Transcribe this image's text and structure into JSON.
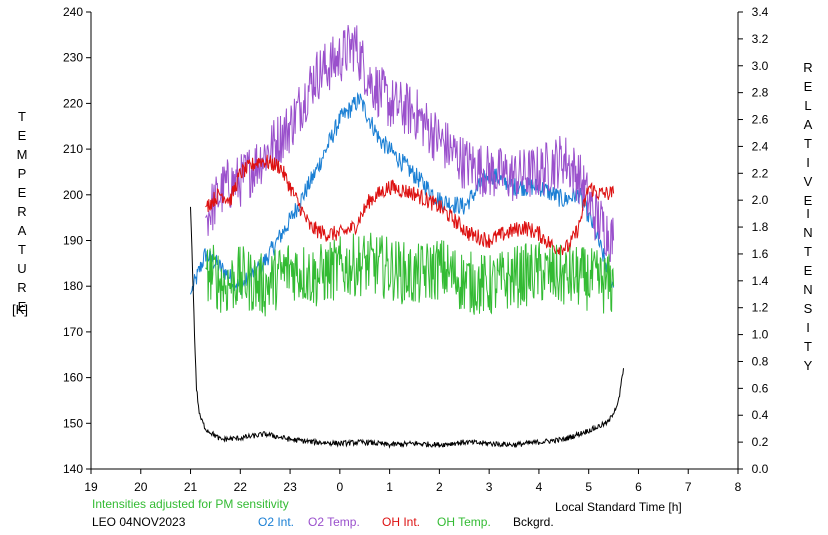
{
  "chart_data": {
    "type": "line",
    "title": "",
    "x_axis": {
      "label": "Local Standard Time [h]",
      "range": [
        19,
        32
      ],
      "ticks": [
        "19",
        "20",
        "21",
        "22",
        "23",
        "0",
        "1",
        "2",
        "3",
        "4",
        "5",
        "6",
        "7",
        "8"
      ]
    },
    "y_axis_left": {
      "label_letters": [
        "T",
        "E",
        "M",
        "P",
        "E",
        "R",
        "A",
        "T",
        "U",
        "R",
        "E"
      ],
      "unit": "[K]",
      "range": [
        140,
        240
      ],
      "ticks": [
        140,
        150,
        160,
        170,
        180,
        190,
        200,
        210,
        220,
        230,
        240
      ]
    },
    "y_axis_right": {
      "label_letters_1": [
        "R",
        "E",
        "L",
        "A",
        "T",
        "I",
        "V",
        "E"
      ],
      "label_letters_2": [
        "I",
        "N",
        "T",
        "E",
        "N",
        "S",
        "I",
        "T",
        "Y"
      ],
      "range": [
        0.0,
        3.4
      ],
      "ticks": [
        "0.0",
        "0.2",
        "0.4",
        "0.6",
        "0.8",
        "1.0",
        "1.2",
        "1.4",
        "1.6",
        "1.8",
        "2.0",
        "2.2",
        "2.4",
        "2.6",
        "2.8",
        "3.0",
        "3.2",
        "3.4"
      ]
    },
    "grid": false,
    "series": [
      {
        "name": "O2 Int.",
        "axis": "right",
        "color": "#1a7fd4",
        "noise": 0.07,
        "points": [
          [
            21.0,
            1.3
          ],
          [
            21.3,
            1.6
          ],
          [
            21.6,
            1.5
          ],
          [
            22.0,
            1.35
          ],
          [
            22.5,
            1.55
          ],
          [
            23.0,
            1.85
          ],
          [
            23.5,
            2.2
          ],
          [
            24.0,
            2.6
          ],
          [
            24.4,
            2.75
          ],
          [
            24.8,
            2.45
          ],
          [
            25.2,
            2.3
          ],
          [
            25.6,
            2.15
          ],
          [
            26.0,
            2.0
          ],
          [
            26.5,
            1.95
          ],
          [
            27.0,
            2.2
          ],
          [
            27.5,
            2.1
          ],
          [
            28.0,
            2.1
          ],
          [
            28.5,
            2.0
          ],
          [
            28.8,
            2.05
          ],
          [
            29.1,
            1.8
          ],
          [
            29.5,
            1.35
          ]
        ]
      },
      {
        "name": "O2 Temp.",
        "axis": "left",
        "color": "#9a50cc",
        "noise": 6,
        "points": [
          [
            21.3,
            195
          ],
          [
            21.7,
            202
          ],
          [
            22.0,
            203
          ],
          [
            22.5,
            209
          ],
          [
            23.0,
            215
          ],
          [
            23.5,
            226
          ],
          [
            24.0,
            230
          ],
          [
            24.3,
            233
          ],
          [
            24.6,
            225
          ],
          [
            25.0,
            220
          ],
          [
            25.5,
            218
          ],
          [
            26.0,
            212
          ],
          [
            26.5,
            207
          ],
          [
            27.0,
            205
          ],
          [
            27.5,
            204
          ],
          [
            28.0,
            205
          ],
          [
            28.5,
            208
          ],
          [
            28.8,
            204
          ],
          [
            29.1,
            196
          ],
          [
            29.5,
            190
          ]
        ]
      },
      {
        "name": "OH Int.",
        "axis": "right",
        "color": "#dd1111",
        "noise": 0.06,
        "points": [
          [
            21.3,
            1.95
          ],
          [
            21.6,
            2.05
          ],
          [
            21.8,
            2.0
          ],
          [
            22.0,
            2.2
          ],
          [
            22.4,
            2.3
          ],
          [
            22.8,
            2.25
          ],
          [
            23.0,
            2.1
          ],
          [
            23.4,
            1.8
          ],
          [
            23.7,
            1.75
          ],
          [
            24.0,
            1.75
          ],
          [
            24.3,
            1.8
          ],
          [
            24.6,
            2.0
          ],
          [
            25.0,
            2.1
          ],
          [
            25.5,
            2.05
          ],
          [
            26.0,
            1.95
          ],
          [
            26.3,
            1.85
          ],
          [
            26.6,
            1.75
          ],
          [
            27.0,
            1.7
          ],
          [
            27.3,
            1.75
          ],
          [
            27.7,
            1.8
          ],
          [
            28.0,
            1.75
          ],
          [
            28.3,
            1.65
          ],
          [
            28.6,
            1.65
          ],
          [
            28.8,
            1.8
          ],
          [
            29.0,
            2.1
          ],
          [
            29.2,
            2.05
          ],
          [
            29.5,
            2.05
          ]
        ]
      },
      {
        "name": "OH Temp.",
        "axis": "left",
        "color": "#33bb33",
        "noise": 7,
        "points": [
          [
            21.3,
            184
          ],
          [
            21.7,
            180
          ],
          [
            22.0,
            182
          ],
          [
            22.5,
            180
          ],
          [
            23.0,
            184
          ],
          [
            23.5,
            182
          ],
          [
            24.0,
            184
          ],
          [
            24.5,
            185
          ],
          [
            25.0,
            184
          ],
          [
            25.5,
            182
          ],
          [
            26.0,
            184
          ],
          [
            26.5,
            181
          ],
          [
            27.0,
            180
          ],
          [
            27.5,
            182
          ],
          [
            28.0,
            183
          ],
          [
            28.5,
            182
          ],
          [
            28.8,
            182
          ],
          [
            29.2,
            181
          ],
          [
            29.5,
            180
          ]
        ]
      },
      {
        "name": "Bckgrd.",
        "axis": "right",
        "color": "#000000",
        "noise": 0.02,
        "points": [
          [
            21.0,
            1.95
          ],
          [
            21.04,
            1.5
          ],
          [
            21.08,
            1.0
          ],
          [
            21.12,
            0.6
          ],
          [
            21.18,
            0.4
          ],
          [
            21.3,
            0.3
          ],
          [
            21.6,
            0.22
          ],
          [
            22.0,
            0.23
          ],
          [
            22.5,
            0.26
          ],
          [
            23.0,
            0.22
          ],
          [
            23.5,
            0.2
          ],
          [
            24.0,
            0.19
          ],
          [
            24.5,
            0.2
          ],
          [
            25.0,
            0.18
          ],
          [
            25.5,
            0.19
          ],
          [
            26.0,
            0.18
          ],
          [
            26.5,
            0.2
          ],
          [
            27.0,
            0.19
          ],
          [
            27.5,
            0.18
          ],
          [
            28.0,
            0.2
          ],
          [
            28.5,
            0.22
          ],
          [
            28.8,
            0.26
          ],
          [
            29.1,
            0.3
          ],
          [
            29.4,
            0.35
          ],
          [
            29.6,
            0.5
          ],
          [
            29.7,
            0.75
          ]
        ]
      }
    ],
    "annotations": [
      {
        "text": "Intensities adjusted for PM sensitivity",
        "color": "#33bb33"
      }
    ]
  },
  "footer": {
    "station": "LEO 04NOV2023",
    "legend": [
      {
        "label": "O2 Int.",
        "color": "#1a7fd4"
      },
      {
        "label": "O2 Temp.",
        "color": "#9a50cc"
      },
      {
        "label": "OH Int.",
        "color": "#dd1111"
      },
      {
        "label": "OH Temp.",
        "color": "#33bb33"
      },
      {
        "label": "Bckgrd.",
        "color": "#000000"
      }
    ]
  }
}
